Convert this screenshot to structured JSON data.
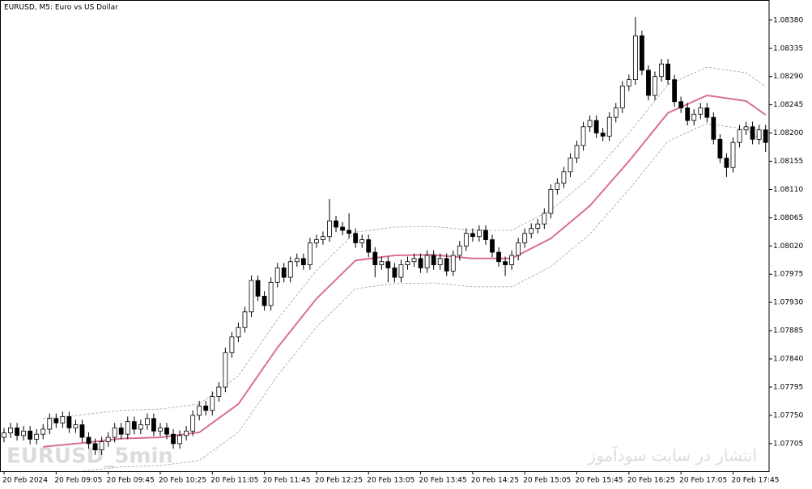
{
  "chart_data": {
    "type": "candlestick",
    "title": "EURUSD, M5:  Euro vs US Dollar",
    "watermarks": [
      "EURUSD_5min",
      "انتشار در سایت سودآموز"
    ],
    "up_color": "#ffffff",
    "down_color": "#000000",
    "categories": [
      "20 Feb 2024",
      null,
      null,
      null,
      null,
      null,
      null,
      null,
      "20 Feb 09:05",
      null,
      null,
      null,
      null,
      null,
      null,
      null,
      "20 Feb 09:45",
      null,
      null,
      null,
      null,
      null,
      null,
      null,
      "20 Feb 10:25",
      null,
      null,
      null,
      null,
      null,
      null,
      null,
      "20 Feb 11:05",
      null,
      null,
      null,
      null,
      null,
      null,
      null,
      "20 Feb 11:45",
      null,
      null,
      null,
      null,
      null,
      null,
      null,
      "20 Feb 12:25",
      null,
      null,
      null,
      null,
      null,
      null,
      null,
      "20 Feb 13:05",
      null,
      null,
      null,
      null,
      null,
      null,
      null,
      "20 Feb 13:45",
      null,
      null,
      null,
      null,
      null,
      null,
      null,
      "20 Feb 14:25",
      null,
      null,
      null,
      null,
      null,
      null,
      null,
      "20 Feb 15:05",
      null,
      null,
      null,
      null,
      null,
      null,
      null,
      "20 Feb 15:45",
      null,
      null,
      null,
      null,
      null,
      null,
      null,
      "20 Feb 16:25",
      null,
      null,
      null,
      null,
      null,
      null,
      null,
      "20 Feb 17:05",
      null,
      null,
      null,
      null,
      null,
      null,
      null,
      "20 Feb 17:45",
      null,
      null,
      null,
      null,
      null
    ],
    "open": [
      1.07715,
      1.07722,
      1.0773,
      1.07718,
      1.07725,
      1.07712,
      1.0772,
      1.07728,
      1.07745,
      1.07738,
      1.07748,
      1.0773,
      1.07735,
      1.07715,
      1.07705,
      1.07695,
      1.07708,
      1.07715,
      1.0773,
      1.0772,
      1.0774,
      1.07728,
      1.07735,
      1.07745,
      1.07725,
      1.0773,
      1.0772,
      1.07705,
      1.07718,
      1.07725,
      1.0775,
      1.07765,
      1.07758,
      1.0778,
      1.07795,
      1.0785,
      1.07875,
      1.0789,
      1.07915,
      1.07965,
      1.0794,
      1.07925,
      1.07962,
      1.07985,
      1.0797,
      1.07995,
      1.08,
      1.0799,
      1.08025,
      1.0803,
      1.08035,
      1.0806,
      1.0805,
      1.08045,
      1.0804,
      1.08025,
      1.0803,
      1.0801,
      1.0799,
      1.07995,
      1.07985,
      1.0797,
      1.0799,
      1.07995,
      1.08,
      1.07985,
      1.08005,
      1.0799,
      1.08,
      1.0798,
      1.08005,
      1.0802,
      1.0804,
      1.08035,
      1.08045,
      1.0803,
      1.0801,
      1.07995,
      1.0799,
      1.08005,
      1.08025,
      1.0804,
      1.08048,
      1.08055,
      1.08072,
      1.0811,
      1.0812,
      1.08138,
      1.0816,
      1.0818,
      1.0821,
      1.0822,
      1.082,
      1.08195,
      1.08225,
      1.0824,
      1.08275,
      1.08285,
      1.08355,
      1.083,
      1.0826,
      1.0829,
      1.0831,
      1.08285,
      1.0825,
      1.0824,
      1.0822,
      1.0823,
      1.0824,
      1.08225,
      1.0819,
      1.0816,
      1.08145,
      1.08185,
      1.08205,
      1.0821,
      1.0819,
      1.08205
    ],
    "high": [
      1.0773,
      1.07738,
      1.07738,
      1.07733,
      1.07733,
      1.07728,
      1.07736,
      1.07753,
      1.07753,
      1.07756,
      1.07756,
      1.07743,
      1.07743,
      1.07723,
      1.07713,
      1.07716,
      1.07723,
      1.07738,
      1.07738,
      1.07748,
      1.07748,
      1.07743,
      1.07753,
      1.07753,
      1.07738,
      1.07738,
      1.07728,
      1.07726,
      1.07733,
      1.07758,
      1.07773,
      1.07773,
      1.07788,
      1.07803,
      1.07858,
      1.07883,
      1.07898,
      1.07923,
      1.07973,
      1.07973,
      1.07948,
      1.0797,
      1.07993,
      1.07993,
      1.08003,
      1.08008,
      1.08008,
      1.08033,
      1.08038,
      1.08043,
      1.08095,
      1.08068,
      1.08058,
      1.08072,
      1.08048,
      1.08038,
      1.08038,
      1.08018,
      1.08003,
      1.08003,
      1.07993,
      1.07998,
      1.08003,
      1.08008,
      1.08008,
      1.08013,
      1.08013,
      1.08008,
      1.08008,
      1.08013,
      1.08028,
      1.08048,
      1.08048,
      1.08053,
      1.08053,
      1.08038,
      1.08018,
      1.08003,
      1.08013,
      1.08033,
      1.08048,
      1.08056,
      1.08063,
      1.0808,
      1.08118,
      1.08128,
      1.08146,
      1.08168,
      1.08188,
      1.08218,
      1.08228,
      1.08228,
      1.08208,
      1.08233,
      1.08248,
      1.08283,
      1.08293,
      1.08385,
      1.08363,
      1.08308,
      1.08298,
      1.08318,
      1.08318,
      1.08293,
      1.08258,
      1.08248,
      1.08238,
      1.08248,
      1.08248,
      1.08233,
      1.08198,
      1.08168,
      1.08193,
      1.08213,
      1.08218,
      1.08218,
      1.08213,
      1.08213
    ],
    "low": [
      1.07707,
      1.07714,
      1.0771,
      1.0771,
      1.07704,
      1.07704,
      1.07712,
      1.0772,
      1.0773,
      1.0773,
      1.07722,
      1.07722,
      1.07707,
      1.07697,
      1.07687,
      1.07687,
      1.077,
      1.07707,
      1.07712,
      1.07712,
      1.0772,
      1.0772,
      1.07727,
      1.07717,
      1.07717,
      1.07712,
      1.07697,
      1.07697,
      1.0771,
      1.07717,
      1.07742,
      1.0775,
      1.0775,
      1.07772,
      1.07787,
      1.07842,
      1.07867,
      1.07882,
      1.07907,
      1.07932,
      1.07917,
      1.07917,
      1.07954,
      1.07962,
      1.07962,
      1.07987,
      1.07982,
      1.07982,
      1.08017,
      1.08022,
      1.08027,
      1.08042,
      1.08037,
      1.08032,
      1.08017,
      1.08017,
      1.08002,
      1.0797,
      1.07982,
      1.07962,
      1.07962,
      1.07962,
      1.07982,
      1.07987,
      1.07977,
      1.07977,
      1.07982,
      1.07982,
      1.07972,
      1.07972,
      1.07997,
      1.08012,
      1.08027,
      1.08027,
      1.08022,
      1.08002,
      1.07987,
      1.07972,
      1.07982,
      1.07997,
      1.08017,
      1.08032,
      1.0804,
      1.08047,
      1.08064,
      1.08102,
      1.08112,
      1.0813,
      1.08152,
      1.08172,
      1.08202,
      1.08192,
      1.08187,
      1.08187,
      1.08217,
      1.08232,
      1.08267,
      1.08277,
      1.08292,
      1.08252,
      1.08252,
      1.08282,
      1.08277,
      1.08242,
      1.08232,
      1.08212,
      1.08212,
      1.08222,
      1.08217,
      1.08182,
      1.08152,
      1.0813,
      1.08137,
      1.08177,
      1.08197,
      1.08182,
      1.08182,
      1.0817
    ],
    "close": [
      1.07722,
      1.0773,
      1.07718,
      1.07725,
      1.07712,
      1.0772,
      1.07728,
      1.07745,
      1.07738,
      1.07748,
      1.0773,
      1.07735,
      1.07715,
      1.07705,
      1.07695,
      1.07708,
      1.07715,
      1.0773,
      1.0772,
      1.0774,
      1.07728,
      1.07735,
      1.07745,
      1.07725,
      1.0773,
      1.0772,
      1.07705,
      1.07718,
      1.07725,
      1.0775,
      1.07765,
      1.07758,
      1.0778,
      1.07795,
      1.0785,
      1.07875,
      1.0789,
      1.07915,
      1.07965,
      1.0794,
      1.07925,
      1.07962,
      1.07985,
      1.0797,
      1.07995,
      1.08,
      1.0799,
      1.08025,
      1.0803,
      1.08035,
      1.0806,
      1.0805,
      1.08045,
      1.0804,
      1.08025,
      1.0803,
      1.0801,
      1.0799,
      1.07995,
      1.07985,
      1.0797,
      1.0799,
      1.07995,
      1.08,
      1.07985,
      1.08005,
      1.0799,
      1.08,
      1.0798,
      1.08005,
      1.0802,
      1.0804,
      1.08035,
      1.08045,
      1.0803,
      1.0801,
      1.07995,
      1.0799,
      1.08005,
      1.08025,
      1.0804,
      1.08048,
      1.08055,
      1.08072,
      1.0811,
      1.0812,
      1.08138,
      1.0816,
      1.0818,
      1.0821,
      1.0822,
      1.082,
      1.08195,
      1.08225,
      1.0824,
      1.08275,
      1.08285,
      1.08355,
      1.083,
      1.0826,
      1.0829,
      1.0831,
      1.08285,
      1.0825,
      1.0824,
      1.0822,
      1.0823,
      1.0824,
      1.08225,
      1.0819,
      1.0816,
      1.08145,
      1.08185,
      1.08205,
      1.0821,
      1.0819,
      1.08205,
      1.08185
    ],
    "lines": [
      {
        "color": "#d9708f",
        "dashed": false,
        "x": [
          6,
          12,
          18,
          24,
          30,
          36,
          42,
          48,
          54,
          60,
          66,
          72,
          78,
          84,
          90,
          96,
          102,
          108,
          114,
          117
        ],
        "values": [
          1.077,
          1.07706,
          1.07713,
          1.07715,
          1.07723,
          1.07768,
          1.07858,
          1.07936,
          1.07997,
          1.08005,
          1.08006,
          1.08,
          1.08,
          1.08032,
          1.08084,
          1.08155,
          1.08232,
          1.0826,
          1.08251,
          1.08229
        ]
      },
      {
        "color": "#a0a0a0",
        "dashed": true,
        "x": [
          6,
          12,
          18,
          24,
          30,
          36,
          42,
          48,
          54,
          60,
          66,
          72,
          78,
          84,
          90,
          96,
          102,
          108,
          114,
          117
        ],
        "values": [
          1.07745,
          1.07751,
          1.07758,
          1.0776,
          1.07768,
          1.07813,
          1.07903,
          1.07981,
          1.08042,
          1.0805,
          1.08051,
          1.08045,
          1.08045,
          1.08077,
          1.08129,
          1.082,
          1.08277,
          1.08305,
          1.08296,
          1.08274
        ]
      },
      {
        "color": "#a0a0a0",
        "dashed": true,
        "x": [
          6,
          12,
          18,
          24,
          30,
          36,
          42,
          48,
          54,
          60,
          66,
          72,
          78,
          84,
          90,
          96,
          102,
          108,
          114,
          117
        ],
        "values": [
          1.07655,
          1.07661,
          1.07668,
          1.0767,
          1.07678,
          1.07723,
          1.07813,
          1.07891,
          1.07952,
          1.0796,
          1.07961,
          1.07955,
          1.07955,
          1.07987,
          1.08039,
          1.0811,
          1.08187,
          1.08215,
          1.08206,
          1.08184
        ]
      }
    ],
    "ylim": [
      1.07661,
      1.08412
    ],
    "yticks": [
      {
        "value": 1.0838,
        "label": "1.08380"
      },
      {
        "value": 1.08335,
        "label": "1.08335"
      },
      {
        "value": 1.0829,
        "label": "1.08290"
      },
      {
        "value": 1.08245,
        "label": "1.08245"
      },
      {
        "value": 1.082,
        "label": "1.08200"
      },
      {
        "value": 1.08155,
        "label": "1.08155"
      },
      {
        "value": 1.0811,
        "label": "1.08110"
      },
      {
        "value": 1.08065,
        "label": "1.08065"
      },
      {
        "value": 1.0802,
        "label": "1.08020"
      },
      {
        "value": 1.07975,
        "label": "1.07975"
      },
      {
        "value": 1.0793,
        "label": "1.07930"
      },
      {
        "value": 1.07885,
        "label": "1.07885"
      },
      {
        "value": 1.0784,
        "label": "1.07840"
      },
      {
        "value": 1.07795,
        "label": "1.07795"
      },
      {
        "value": 1.0775,
        "label": "1.07750"
      },
      {
        "value": 1.07705,
        "label": "1.07705"
      }
    ]
  }
}
